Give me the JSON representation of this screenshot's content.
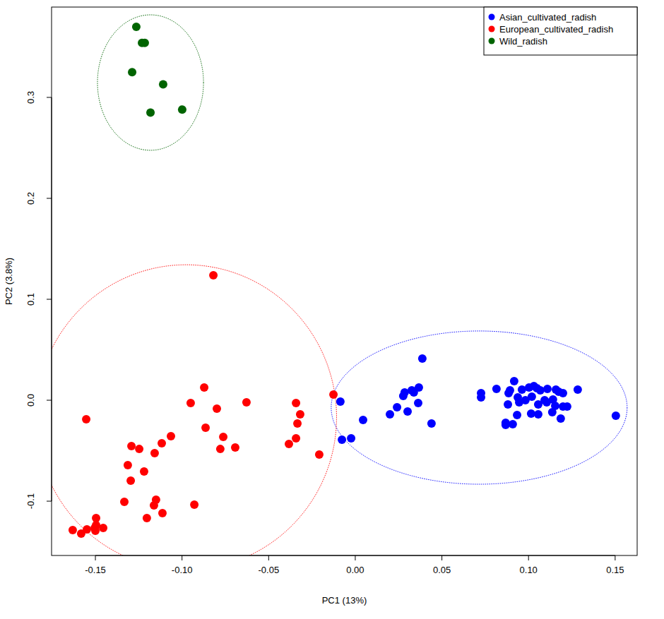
{
  "chart_data": {
    "type": "scatter",
    "x_label": "PC1 (13%)",
    "y_label": "PC2 (3.8%)",
    "xlim": [
      -0.1753,
      0.1627
    ],
    "ylim": [
      -0.1538,
      0.3895
    ],
    "xticks": [
      {
        "value": -0.15,
        "label": "-0.15"
      },
      {
        "value": -0.1,
        "label": "-0.10"
      },
      {
        "value": -0.05,
        "label": "-0.05"
      },
      {
        "value": 0,
        "label": "0.00"
      },
      {
        "value": 0.05,
        "label": "0.05"
      },
      {
        "value": 0.1,
        "label": "0.10"
      },
      {
        "value": 0.15,
        "label": "0.15"
      }
    ],
    "yticks": [
      -0.1,
      {
        "value": 0,
        "label": "0.0"
      },
      0.1,
      0.2,
      0.3
    ],
    "legend": "top-right",
    "grid": false,
    "marker": "circle",
    "series": [
      {
        "name": "Asian_cultivated_radish",
        "color": "#0000ff",
        "x": [
          -0.0086,
          0.0045,
          -0.0077,
          -0.0024,
          0.02,
          0.0241,
          0.0285,
          0.0277,
          0.0326,
          0.0338,
          0.0367,
          0.0302,
          0.0363,
          0.044,
          0.0387,
          0.0726,
          0.0726,
          0.0815,
          0.0917,
          0.0885,
          0.0893,
          0.0962,
          0.1003,
          0.1031,
          0.1048,
          0.1068,
          0.1109,
          0.1158,
          0.1174,
          0.1199,
          0.1284,
          0.0938,
          0.0982,
          0.1019,
          0.1093,
          0.1141,
          0.0946,
          0.0881,
          0.1056,
          0.1105,
          0.1154,
          0.1199,
          0.1223,
          0.1015,
          0.1056,
          0.0934,
          0.1137,
          0.1186,
          0.0868,
          0.0909,
          0.0868,
          0.1504
        ],
        "values": [
          -0.0014,
          -0.0196,
          -0.0392,
          -0.0378,
          -0.014,
          -0.007,
          0.0077,
          0.0042,
          0.0098,
          0.0077,
          0.0126,
          -0.0112,
          -0.0028,
          -0.0231,
          0.0413,
          0.007,
          0.0028,
          0.0112,
          0.0189,
          0.007,
          0.0098,
          0.0105,
          0.0126,
          0.014,
          0.0119,
          0.0098,
          0.0112,
          0.0105,
          0.0084,
          0.007,
          0.0105,
          0.0028,
          0.0,
          0.0035,
          0.0,
          0.0007,
          -0.0021,
          -0.0042,
          -0.0042,
          -0.0021,
          -0.0056,
          -0.0063,
          -0.0063,
          -0.0133,
          -0.014,
          -0.0147,
          -0.0119,
          -0.0182,
          -0.0224,
          -0.0238,
          -0.0245,
          -0.0154
        ],
        "ellipse": {
          "x": 0.0715,
          "y": -0.0073,
          "rx": 0.0854,
          "ry": 0.0759
        }
      },
      {
        "name": "European_cultivated_radish",
        "color": "#ff0000",
        "x": [
          -0.0819,
          -0.1553,
          -0.0872,
          -0.095,
          -0.0799,
          -0.0628,
          -0.0864,
          -0.0762,
          -0.0779,
          -0.0693,
          -0.1064,
          -0.1117,
          -0.1158,
          -0.1247,
          -0.1292,
          -0.1219,
          -0.1313,
          -0.1296,
          -0.1333,
          -0.115,
          -0.1162,
          -0.1113,
          -0.1203,
          -0.0929,
          -0.1496,
          -0.1496,
          -0.1504,
          -0.1455,
          -0.1549,
          -0.15,
          -0.1631,
          -0.1582,
          -0.0342,
          -0.0318,
          -0.0334,
          -0.0342,
          -0.0383,
          -0.0208,
          -0.0126
        ],
        "values": [
          0.1238,
          -0.0189,
          0.0126,
          -0.0028,
          -0.0084,
          -0.0021,
          -0.0273,
          -0.0364,
          -0.0483,
          -0.0469,
          -0.0357,
          -0.0427,
          -0.0524,
          -0.0483,
          -0.0455,
          -0.0706,
          -0.0643,
          -0.0797,
          -0.1007,
          -0.0986,
          -0.1042,
          -0.1119,
          -0.1168,
          -0.1035,
          -0.1168,
          -0.1238,
          -0.1266,
          -0.1266,
          -0.128,
          -0.1294,
          -0.1287,
          -0.1322,
          -0.0028,
          -0.014,
          -0.0231,
          -0.0378,
          -0.0434,
          -0.0538,
          0.0056
        ],
        "ellipse": {
          "x": -0.0976,
          "y": -0.0168,
          "rx": 0.0868,
          "ry": 0.151
        }
      },
      {
        "name": "Wild_radish",
        "color": "#006400",
        "x": [
          -0.1264,
          -0.1231,
          -0.1215,
          -0.1288,
          -0.1109,
          -0.1182,
          -0.0999
        ],
        "values": [
          0.37,
          0.354,
          0.354,
          0.325,
          0.313,
          0.285,
          0.288
        ],
        "ellipse": {
          "x": -0.1182,
          "y": 0.3147,
          "rx": 0.0306,
          "ry": 0.0671
        }
      }
    ]
  }
}
